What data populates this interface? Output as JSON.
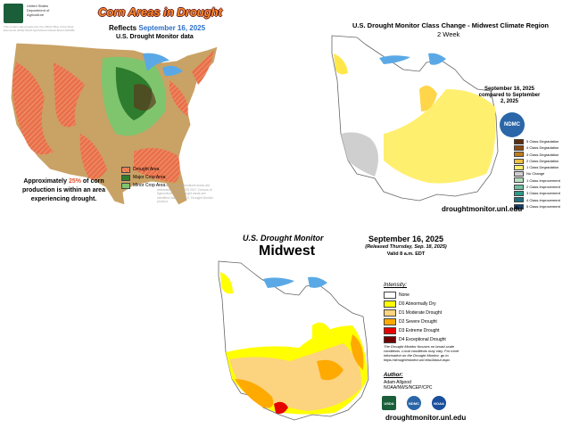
{
  "corn_panel": {
    "agency": "United States Department of Agriculture",
    "credit": "This product was prepared by the USDA Office of the Chief Economist (OCE) World Agricultural Outlook Board (WAOB)",
    "title": "Corn Areas in Drought",
    "reflects": "Reflects",
    "date": "September 16, 2025",
    "source": "U.S. Drought Monitor data",
    "legend": [
      "Drought Area",
      "Major Crop Area",
      "Minor Crop Area"
    ],
    "summary_before": "Approximately",
    "summary_pct": "25%",
    "summary_after": "of corn production is within an area experiencing drought.",
    "method_note": "Major and minor agricultural areas are delineated using NASS 2017 Census of Agriculture data. Drought areas are identified using the U.S. Drought Monitor product."
  },
  "change_panel": {
    "title": "U.S. Drought Monitor Class Change - Midwest Climate Region",
    "subtitle": "2 Week",
    "comparison": "September 16, 2025 compared to September 2, 2025",
    "logo": "NDMC",
    "legend": [
      "5 Class Degradation",
      "4 Class Degradation",
      "3 Class Degradation",
      "2 Class Degradation",
      "1 Class Degradation",
      "No Change",
      "1 Class Improvement",
      "2 Class Improvement",
      "3 Class Improvement",
      "4 Class Improvement",
      "5 Class Improvement"
    ],
    "url": "droughtmonitor.unl.edu"
  },
  "monitor_panel": {
    "title": "U.S. Drought Monitor",
    "region": "Midwest",
    "date": "September 16, 2025",
    "released": "(Released Thursday, Sep. 18, 2025)",
    "valid": "Valid 8 a.m. EDT",
    "legend_title": "Intensity:",
    "legend": [
      "None",
      "D0 Abnormally Dry",
      "D1 Moderate Drought",
      "D2 Severe Drought",
      "D3 Extreme Drought",
      "D4 Exceptional Drought"
    ],
    "note": "The Drought Monitor focuses on broad-scale conditions. Local conditions may vary. For more information on the Drought Monitor, go to https://droughtmonitor.unl.edu/About.aspx",
    "author_label": "Author:",
    "author": "Adam Allgood",
    "author_org": "NOAA/NWS/NCEP/CPC",
    "logos": [
      "USDA",
      "NDMC",
      "NOAA"
    ],
    "url": "droughtmonitor.unl.edu"
  }
}
